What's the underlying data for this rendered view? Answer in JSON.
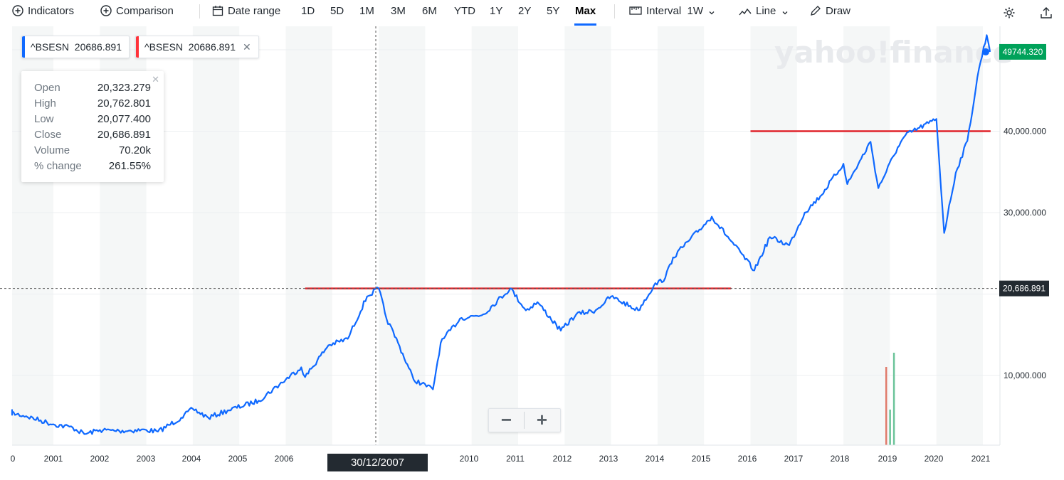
{
  "toolbar": {
    "indicators": "Indicators",
    "comparison": "Comparison",
    "date_range": "Date range",
    "ranges": [
      "1D",
      "5D",
      "1M",
      "3M",
      "6M",
      "YTD",
      "1Y",
      "2Y",
      "5Y",
      "Max"
    ],
    "active_range": "Max",
    "interval_label": "Interval",
    "interval_value": "1W",
    "chart_type": "Line",
    "draw": "Draw"
  },
  "legend": [
    {
      "symbol": "^BSESN",
      "value": "20686.891",
      "color": "#0f69ff"
    },
    {
      "symbol": "^BSESN",
      "value": "20686.891",
      "color": "#ff333a"
    }
  ],
  "tooltip": {
    "rows": [
      {
        "label": "Open",
        "value": "20,323.279"
      },
      {
        "label": "High",
        "value": "20,762.801"
      },
      {
        "label": "Low",
        "value": "20,077.400"
      },
      {
        "label": "Close",
        "value": "20,686.891"
      },
      {
        "label": "Volume",
        "value": "70.20k"
      },
      {
        "label": "% change",
        "value": "261.55%"
      }
    ]
  },
  "crosshair_date": "30/12/2007",
  "watermark": "yahoo!finance",
  "zoom": {
    "minus": "−",
    "plus": "+"
  },
  "colors": {
    "line": "#0f69ff",
    "drawing": "#e0242b",
    "last_price": "#00a25a",
    "crosshair_flag": "#232a31"
  },
  "chart_data": {
    "type": "line",
    "series": [
      {
        "x": [
          "2000-01",
          "2000-06",
          "2001-01",
          "2001-06",
          "2001-09",
          "2002-01",
          "2002-06",
          "2003-01",
          "2003-04",
          "2003-10",
          "2004-01",
          "2004-05",
          "2004-10",
          "2005-06",
          "2006-01",
          "2006-05",
          "2006-06",
          "2006-12",
          "2007-05",
          "2007-10",
          "2008-01",
          "2008-03",
          "2008-06",
          "2008-10",
          "2009-03",
          "2009-05",
          "2009-10",
          "2010-04",
          "2010-11",
          "2011-03",
          "2011-06",
          "2011-12",
          "2012-04",
          "2012-09",
          "2013-01",
          "2013-08",
          "2013-12",
          "2014-03",
          "2014-05",
          "2014-09",
          "2015-03",
          "2015-08",
          "2016-02",
          "2016-06",
          "2016-11",
          "2017-03",
          "2017-07",
          "2018-01",
          "2018-02",
          "2018-08",
          "2018-10",
          "2019-03",
          "2019-05",
          "2019-11",
          "2020-01",
          "2020-03",
          "2020-06",
          "2020-09",
          "2020-12",
          "2021-02",
          "2021-03"
        ],
        "y": [
          5500,
          5000,
          4000,
          3600,
          2800,
          3300,
          3200,
          3300,
          3100,
          4800,
          5900,
          4800,
          5700,
          6900,
          9500,
          11000,
          9800,
          13700,
          14500,
          19700,
          20700,
          17000,
          14000,
          9500,
          8300,
          14000,
          17000,
          17500,
          20700,
          18000,
          19000,
          15500,
          17500,
          18000,
          19700,
          18000,
          21000,
          22000,
          24500,
          26500,
          29500,
          26500,
          22900,
          27000,
          26000,
          30000,
          32000,
          36000,
          33500,
          38700,
          33000,
          38000,
          39500,
          41000,
          41500,
          27500,
          34900,
          38800,
          47700,
          51800,
          49744
        ]
      }
    ],
    "ylabels": [
      "10,000.000",
      "30,000.000",
      "40,000.000"
    ],
    "x_ticks": [
      "0",
      "2001",
      "2002",
      "2003",
      "2004",
      "2005",
      "2006",
      "9",
      "2010",
      "2011",
      "2012",
      "2013",
      "2014",
      "2015",
      "2016",
      "2017",
      "2018",
      "2019",
      "2020",
      "2021"
    ],
    "last_price_label": "49744.320",
    "cursor_price_label": "20,686.891",
    "horizontal_lines": [
      {
        "y": 20686.891,
        "from": "2006-06",
        "to": "2015-08"
      },
      {
        "y": 40000,
        "from": "2016-01",
        "to": "2021-03"
      }
    ],
    "volume_spikes": [
      {
        "x": "2018-12",
        "value": 11,
        "color": "#e07a6b"
      },
      {
        "x": "2019-01",
        "value": 5,
        "color": "#6cc49a"
      },
      {
        "x": "2019-02",
        "value": 13,
        "color": "#6cc49a"
      }
    ]
  }
}
